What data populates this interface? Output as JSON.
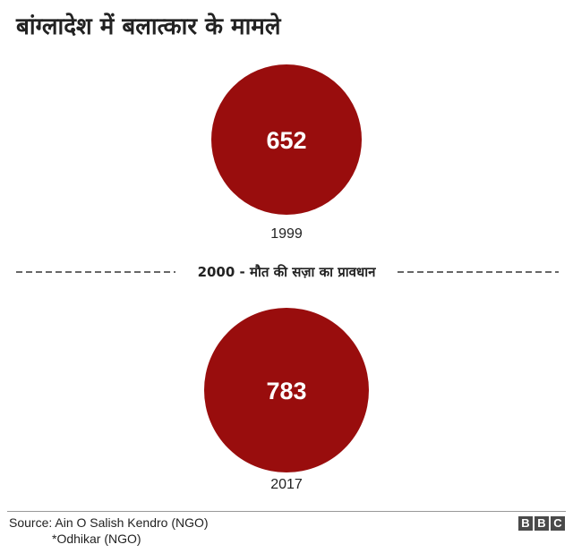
{
  "title": "बांग्लादेश में बलात्कार के मामले",
  "chart_data": {
    "type": "bubble",
    "title": "बांग्लादेश में बलात्कार के मामले",
    "categories": [
      "1999",
      "2017"
    ],
    "values": [
      652,
      783
    ],
    "annotation": "2000 - मौत की सज़ा का प्रावधान",
    "colors": {
      "bubble": "#990d0d",
      "text": "#222222"
    }
  },
  "footer": {
    "source_line1": "Source: Ain O Salish Kendro (NGO)",
    "source_line2": "*Odhikar (NGO)",
    "logo_letters": [
      "B",
      "B",
      "C"
    ]
  }
}
